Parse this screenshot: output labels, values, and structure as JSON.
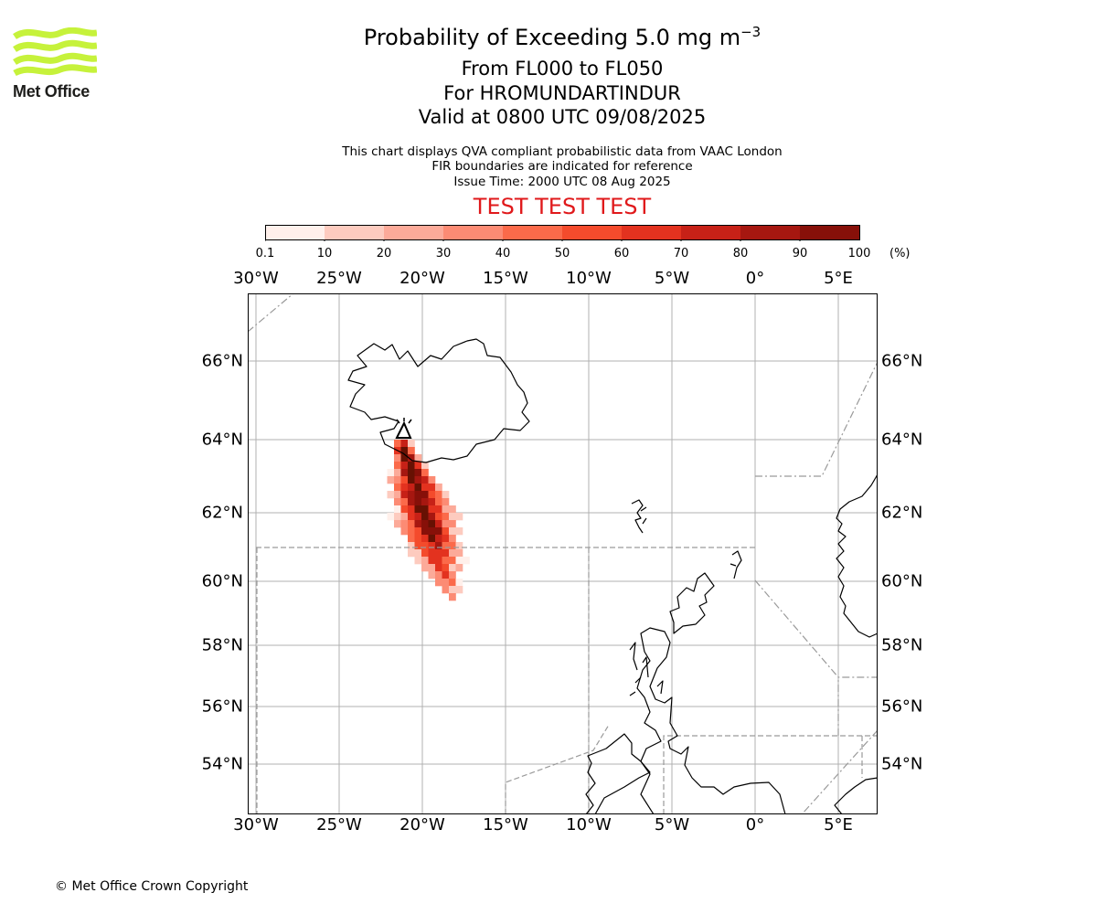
{
  "logo": {
    "name": "Met Office",
    "colors": {
      "waves": "#c6f23b",
      "text": "#1d1d1b"
    }
  },
  "title": {
    "line1_prefix": "Probability of Exceeding 5.0 mg m",
    "line1_exponent": "−3",
    "line2": "From FL000 to FL050",
    "line3": "For HROMUNDARTINDUR",
    "line4": "Valid at 0800 UTC 09/08/2025"
  },
  "info": {
    "line1": "This chart displays QVA compliant probabilistic data from VAAC London",
    "line2": "FIR boundaries are indicated for reference",
    "line3": "Issue Time: 2000 UTC 08 Aug 2025"
  },
  "test_banner": "TEST TEST TEST",
  "colorbar": {
    "unit": "(%)",
    "ticks": [
      "0.1",
      "10",
      "20",
      "30",
      "40",
      "50",
      "60",
      "70",
      "80",
      "90",
      "100"
    ],
    "colors": [
      "#fff0eb",
      "#fdcbbf",
      "#fcaa99",
      "#fc8b74",
      "#fb6a4a",
      "#f44b2c",
      "#e3321f",
      "#c72117",
      "#a61710",
      "#871009",
      "#671103"
    ]
  },
  "map": {
    "lon_labels": [
      "30°W",
      "25°W",
      "20°W",
      "15°W",
      "10°W",
      "5°W",
      "0°",
      "5°E"
    ],
    "lat_labels": [
      "66°N",
      "64°N",
      "62°N",
      "60°N",
      "58°N",
      "56°N",
      "54°N"
    ],
    "volcano": "HROMUNDARTINDUR"
  },
  "copyright": "© Met Office Crown Copyright"
}
